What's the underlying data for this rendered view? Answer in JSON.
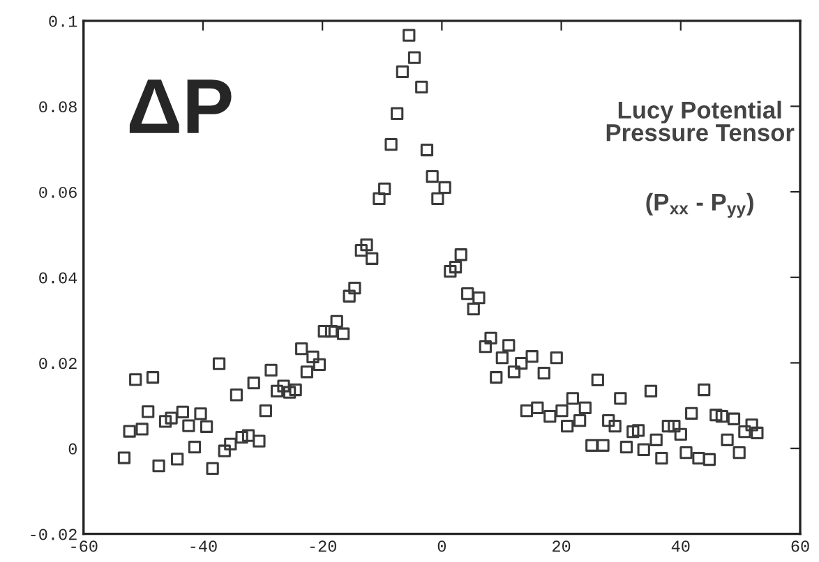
{
  "chart_data": {
    "type": "scatter",
    "title": "ΔP",
    "annotations": [
      "Lucy Potential\nPressure Tensor",
      "(P$_{xx}$ - P$_{yy}$)"
    ],
    "xlim": [
      -60,
      60
    ],
    "xticks": [
      -60,
      -40,
      -20,
      0,
      20,
      40,
      60
    ],
    "ylim": [
      -0.02,
      0.1
    ],
    "yticks": [
      -0.02,
      0,
      0.02,
      0.04,
      0.06,
      0.08,
      0.1
    ],
    "grid": false,
    "marker": "square",
    "series": [
      {
        "color": "#3a3a3a",
        "x": [
          -53.2,
          -52.3,
          -51.3,
          -50.2,
          -49.2,
          -48.4,
          -47.4,
          -46.3,
          -45.3,
          -44.3,
          -43.4,
          -42.4,
          -41.4,
          -40.4,
          -39.4,
          -38.4,
          -37.3,
          -36.4,
          -35.4,
          -34.4,
          -33.5,
          -32.4,
          -31.5,
          -30.6,
          -29.5,
          -28.6,
          -27.6,
          -26.5,
          -25.5,
          -24.5,
          -23.5,
          -22.6,
          -21.6,
          -20.5,
          -19.7,
          -18.5,
          -17.6,
          -16.5,
          -15.5,
          -14.6,
          -13.5,
          -12.6,
          -11.7,
          -10.5,
          -9.6,
          -8.5,
          -7.5,
          -6.6,
          -5.5,
          -4.6,
          -3.4,
          -2.5,
          -1.6,
          -0.7,
          0.5,
          1.4,
          2.3,
          3.2,
          4.3,
          5.3,
          6.2,
          7.3,
          8.2,
          9.1,
          10.1,
          11.2,
          12.1,
          13.3,
          14.2,
          15.1,
          16.0,
          17.1,
          18.1,
          19.2,
          20.1,
          21.0,
          21.9,
          23.1,
          24.0,
          25.1,
          26.1,
          27.0,
          27.9,
          29.0,
          29.9,
          30.9,
          32.0,
          32.9,
          33.8,
          35.0,
          35.9,
          36.8,
          37.9,
          38.9,
          40.0,
          40.9,
          41.8,
          43.0,
          43.9,
          44.8,
          45.9,
          46.9,
          47.8,
          48.9,
          49.8,
          50.7,
          51.9,
          52.8
        ],
        "values": [
          -0.0022,
          0.004,
          0.0161,
          0.0045,
          0.0086,
          0.0166,
          -0.0041,
          0.0063,
          0.0071,
          -0.0025,
          0.0085,
          0.0053,
          0.0003,
          0.0081,
          0.0051,
          -0.0047,
          0.0198,
          -0.0006,
          0.001,
          0.0125,
          0.0026,
          0.003,
          0.0153,
          0.0017,
          0.0088,
          0.0183,
          0.0134,
          0.0146,
          0.0131,
          0.0137,
          0.0233,
          0.0179,
          0.0214,
          0.0196,
          0.0274,
          0.0274,
          0.0297,
          0.0268,
          0.0356,
          0.0375,
          0.0463,
          0.0476,
          0.0444,
          0.0584,
          0.0607,
          0.0711,
          0.0783,
          0.0881,
          0.0966,
          0.0914,
          0.0845,
          0.0698,
          0.0636,
          0.0584,
          0.061,
          0.0414,
          0.0424,
          0.0453,
          0.0362,
          0.0326,
          0.0352,
          0.0238,
          0.0258,
          0.0166,
          0.0212,
          0.0241,
          0.0179,
          0.0199,
          0.0088,
          0.0215,
          0.0095,
          0.0176,
          0.0075,
          0.0212,
          0.0088,
          0.0052,
          0.0117,
          0.0065,
          0.0095,
          0.0007,
          0.016,
          0.0007,
          0.0065,
          0.0052,
          0.0117,
          0.0003,
          0.0039,
          0.0042,
          -0.0003,
          0.0134,
          0.002,
          -0.0023,
          0.0052,
          0.0052,
          0.0033,
          -0.001,
          0.0082,
          -0.0023,
          0.0137,
          -0.0026,
          0.0078,
          0.0075,
          0.002,
          0.0069,
          -0.001,
          0.0039,
          0.0055,
          0.0036
        ]
      }
    ]
  }
}
